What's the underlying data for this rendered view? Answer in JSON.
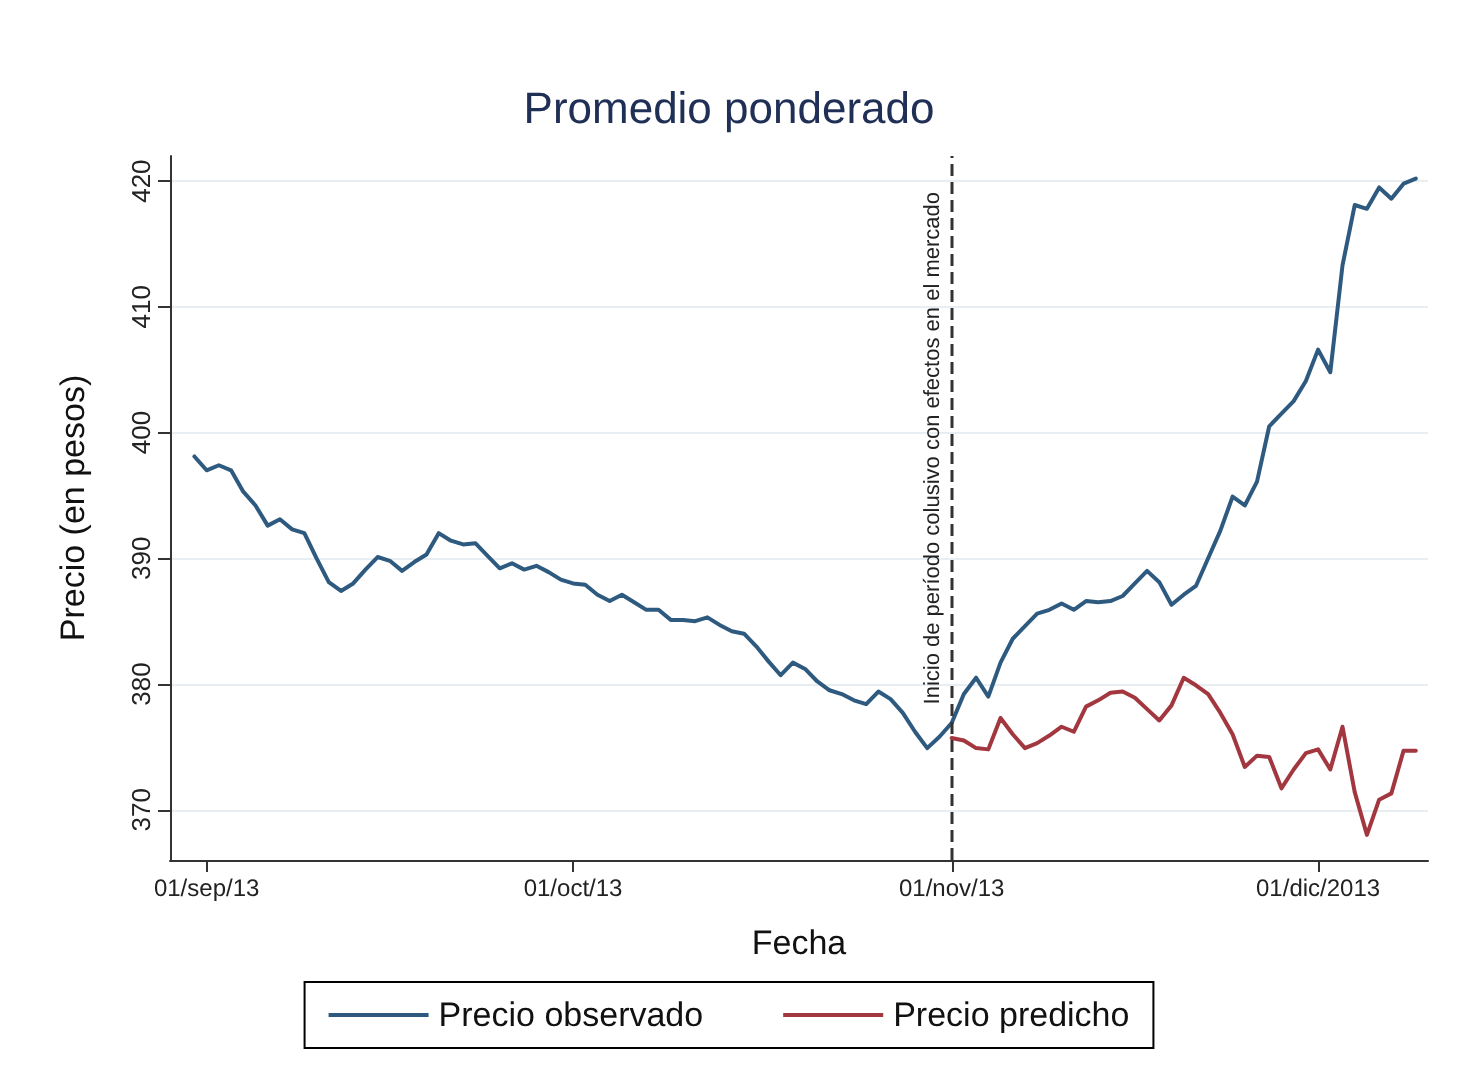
{
  "chart_data": {
    "type": "line",
    "title": "Promedio ponderado",
    "xlabel": "Fecha",
    "ylabel": "Precio (en pesos)",
    "x": [
      "2013-08-31",
      "2013-09-01",
      "2013-09-02",
      "2013-09-03",
      "2013-09-04",
      "2013-09-05",
      "2013-09-06",
      "2013-09-07",
      "2013-09-08",
      "2013-09-09",
      "2013-09-10",
      "2013-09-11",
      "2013-09-12",
      "2013-09-13",
      "2013-09-14",
      "2013-09-15",
      "2013-09-16",
      "2013-09-17",
      "2013-09-18",
      "2013-09-19",
      "2013-09-20",
      "2013-09-21",
      "2013-09-22",
      "2013-09-23",
      "2013-09-24",
      "2013-09-25",
      "2013-09-26",
      "2013-09-27",
      "2013-09-28",
      "2013-09-29",
      "2013-09-30",
      "2013-10-01",
      "2013-10-02",
      "2013-10-03",
      "2013-10-04",
      "2013-10-05",
      "2013-10-06",
      "2013-10-07",
      "2013-10-08",
      "2013-10-09",
      "2013-10-10",
      "2013-10-11",
      "2013-10-12",
      "2013-10-13",
      "2013-10-14",
      "2013-10-15",
      "2013-10-16",
      "2013-10-17",
      "2013-10-18",
      "2013-10-19",
      "2013-10-20",
      "2013-10-21",
      "2013-10-22",
      "2013-10-23",
      "2013-10-24",
      "2013-10-25",
      "2013-10-26",
      "2013-10-27",
      "2013-10-28",
      "2013-10-29",
      "2013-10-30",
      "2013-10-31",
      "2013-11-01",
      "2013-11-02",
      "2013-11-03",
      "2013-11-04",
      "2013-11-05",
      "2013-11-06",
      "2013-11-07",
      "2013-11-08",
      "2013-11-09",
      "2013-11-10",
      "2013-11-11",
      "2013-11-12",
      "2013-11-13",
      "2013-11-14",
      "2013-11-15",
      "2013-11-16",
      "2013-11-17",
      "2013-11-18",
      "2013-11-19",
      "2013-11-20",
      "2013-11-21",
      "2013-11-22",
      "2013-11-23",
      "2013-11-24",
      "2013-11-25",
      "2013-11-26",
      "2013-11-27",
      "2013-11-28",
      "2013-11-29",
      "2013-11-30",
      "2013-12-01",
      "2013-12-02",
      "2013-12-03",
      "2013-12-04",
      "2013-12-05",
      "2013-12-06",
      "2013-12-07",
      "2013-12-08",
      "2013-12-09"
    ],
    "series": [
      {
        "name": "Precio observado",
        "color": "#2e5a80",
        "values": [
          398.1,
          397.0,
          397.4,
          397.0,
          395.3,
          394.2,
          392.6,
          393.1,
          392.3,
          392.0,
          390.0,
          388.1,
          387.4,
          388.0,
          389.1,
          390.1,
          389.8,
          389.0,
          389.7,
          390.3,
          392.0,
          391.4,
          391.1,
          391.2,
          390.2,
          389.2,
          389.6,
          389.1,
          389.4,
          388.9,
          388.3,
          388.0,
          387.9,
          387.1,
          386.6,
          387.1,
          386.5,
          385.9,
          385.9,
          385.1,
          385.1,
          385.0,
          385.3,
          384.7,
          384.2,
          384.0,
          383.0,
          381.8,
          380.7,
          381.7,
          381.2,
          380.2,
          379.5,
          379.2,
          378.7,
          378.4,
          379.4,
          378.8,
          377.7,
          376.2,
          374.9,
          375.8,
          376.9,
          379.2,
          380.5,
          379.0,
          381.7,
          383.6,
          384.6,
          385.6,
          385.9,
          386.4,
          385.9,
          386.6,
          386.5,
          386.6,
          387.0,
          388.0,
          389.0,
          388.1,
          386.3,
          387.1,
          387.8,
          390.0,
          392.2,
          394.9,
          394.2,
          396.1,
          400.5,
          401.5,
          402.5,
          404.1,
          406.6,
          404.8,
          413.3,
          418.1,
          417.8,
          419.5,
          418.6,
          419.8,
          420.2
        ]
      },
      {
        "name": "Precio predicho",
        "color": "#a3373f",
        "values": [
          null,
          null,
          null,
          null,
          null,
          null,
          null,
          null,
          null,
          null,
          null,
          null,
          null,
          null,
          null,
          null,
          null,
          null,
          null,
          null,
          null,
          null,
          null,
          null,
          null,
          null,
          null,
          null,
          null,
          null,
          null,
          null,
          null,
          null,
          null,
          null,
          null,
          null,
          null,
          null,
          null,
          null,
          null,
          null,
          null,
          null,
          null,
          null,
          null,
          null,
          null,
          null,
          null,
          null,
          null,
          null,
          null,
          null,
          null,
          null,
          null,
          null,
          375.7,
          375.5,
          374.9,
          374.8,
          377.3,
          376.0,
          374.9,
          375.3,
          375.9,
          376.6,
          376.2,
          378.2,
          378.7,
          379.3,
          379.4,
          378.9,
          378.0,
          377.1,
          378.3,
          380.5,
          379.9,
          379.2,
          377.7,
          376.0,
          373.4,
          374.3,
          374.2,
          371.7,
          373.2,
          374.5,
          374.8,
          373.2,
          376.6,
          371.4,
          368.0,
          370.8,
          371.3,
          374.7,
          374.7
        ]
      }
    ],
    "xlim": [
      "2013-08-29",
      "2013-12-10"
    ],
    "xticks": [
      {
        "value": "2013-09-01",
        "label": "01/sep/13"
      },
      {
        "value": "2013-10-01",
        "label": "01/oct/13"
      },
      {
        "value": "2013-11-01",
        "label": "01/nov/13"
      },
      {
        "value": "2013-12-01",
        "label": "01/dic/2013"
      }
    ],
    "ylim": [
      366,
      422
    ],
    "yticks": [
      370,
      380,
      390,
      400,
      410,
      420
    ],
    "ref_lines": [
      {
        "axis": "x",
        "value": "2013-11-01",
        "label": "Inicio de período colusivo con efectos en el mercado",
        "color": "#333333",
        "line_style": "dashed"
      }
    ],
    "grid": "y",
    "legend": "bottom",
    "marker": "none",
    "line_style": "solid"
  }
}
